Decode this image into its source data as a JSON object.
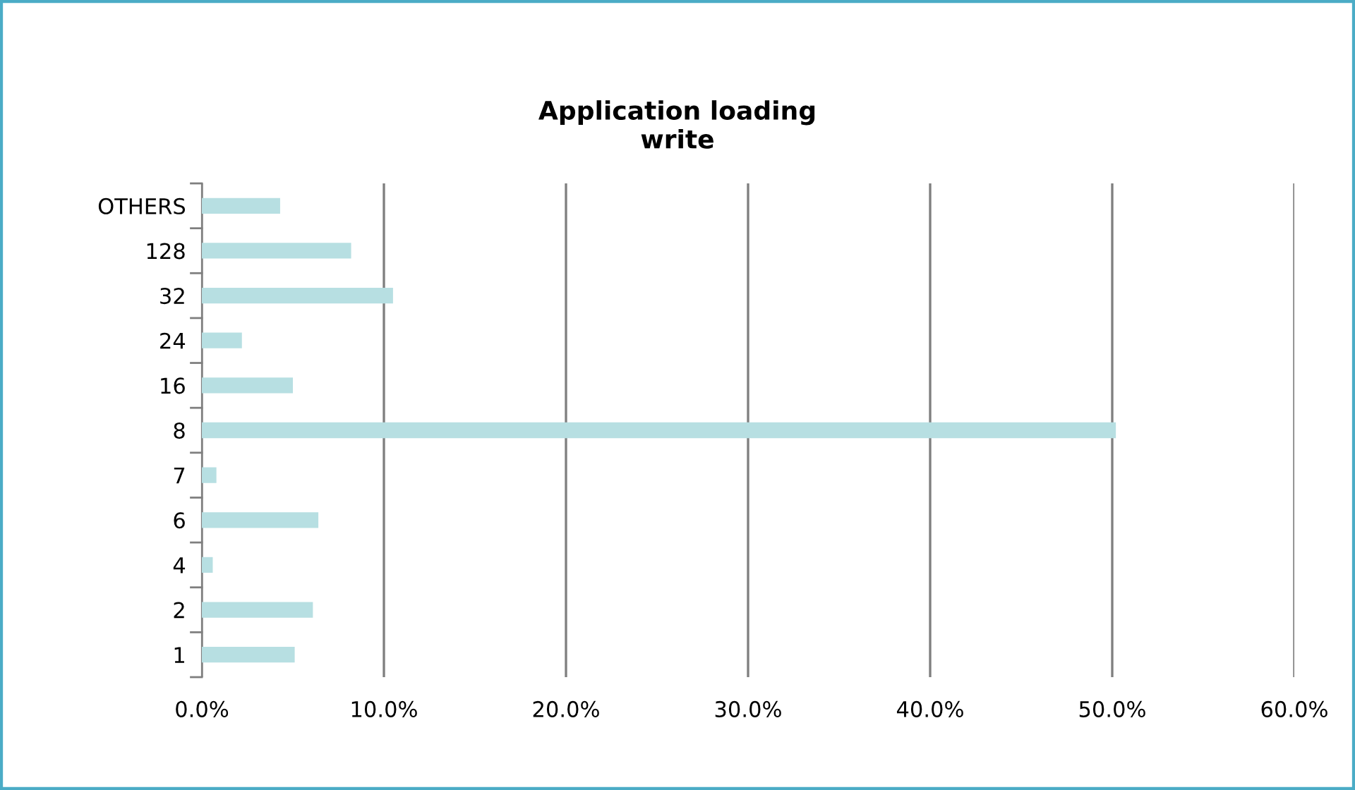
{
  "chart_data": {
    "type": "bar",
    "orientation": "horizontal",
    "title": "Application loading\nwrite",
    "categories": [
      "OTHERS",
      "128",
      "32",
      "24",
      "16",
      "8",
      "7",
      "6",
      "4",
      "2",
      "1"
    ],
    "values": [
      4.3,
      8.2,
      10.5,
      2.2,
      5.0,
      50.2,
      0.8,
      6.4,
      0.6,
      6.1,
      5.1
    ],
    "color": "#b7dfe2",
    "xlim": [
      0,
      60
    ],
    "xticks": [
      {
        "value": 0,
        "label": "0.0%"
      },
      {
        "value": 10,
        "label": "10.0%"
      },
      {
        "value": 20,
        "label": "20.0%"
      },
      {
        "value": 30,
        "label": "30.0%"
      },
      {
        "value": 40,
        "label": "40.0%"
      },
      {
        "value": 50,
        "label": "50.0%"
      },
      {
        "value": 60,
        "label": "60.0%"
      }
    ],
    "grid": "x",
    "legend": false
  }
}
